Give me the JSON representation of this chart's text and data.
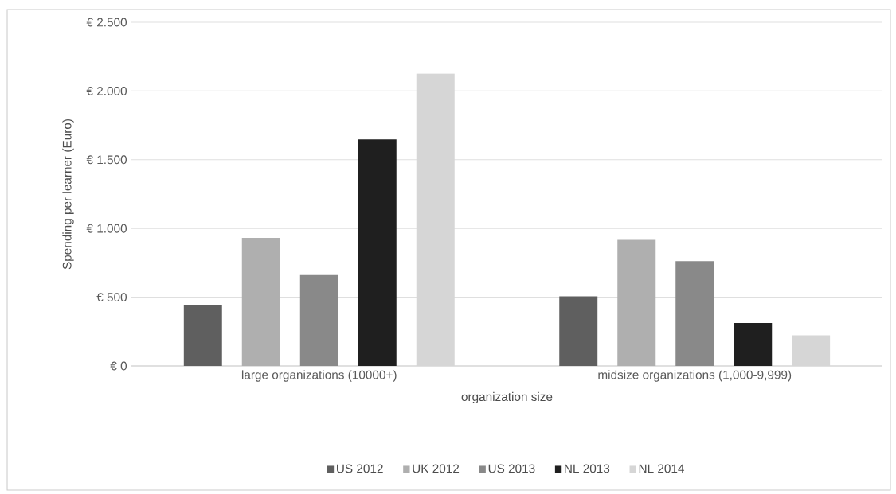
{
  "chart_data": {
    "type": "bar",
    "xlabel": "organization size",
    "ylabel": "Spending per learner (Euro)",
    "categories": [
      "large organizations (10000+)",
      "midsize organizations (1,000-9,999)"
    ],
    "series": [
      {
        "name": "US 2012",
        "color": "#5f5f5f",
        "values": [
          445,
          506
        ]
      },
      {
        "name": "UK 2012",
        "color": "#afafaf",
        "values": [
          932,
          917
        ]
      },
      {
        "name": "US 2013",
        "color": "#898989",
        "values": [
          661,
          762
        ]
      },
      {
        "name": "NL 2013",
        "color": "#1f1f1f",
        "values": [
          1648,
          313
        ]
      },
      {
        "name": "NL 2014",
        "color": "#d6d6d6",
        "values": [
          2127,
          223
        ]
      }
    ],
    "ylim": [
      0,
      2500
    ],
    "yticks": [
      {
        "value": 0,
        "label": "€ 0"
      },
      {
        "value": 500,
        "label": "€ 500"
      },
      {
        "value": 1000,
        "label": "€ 1.000"
      },
      {
        "value": 1500,
        "label": "€ 1.500"
      },
      {
        "value": 2000,
        "label": "€ 2.000"
      },
      {
        "value": 2500,
        "label": "€ 2.500"
      }
    ],
    "grid": "y",
    "legend": "bottom"
  }
}
